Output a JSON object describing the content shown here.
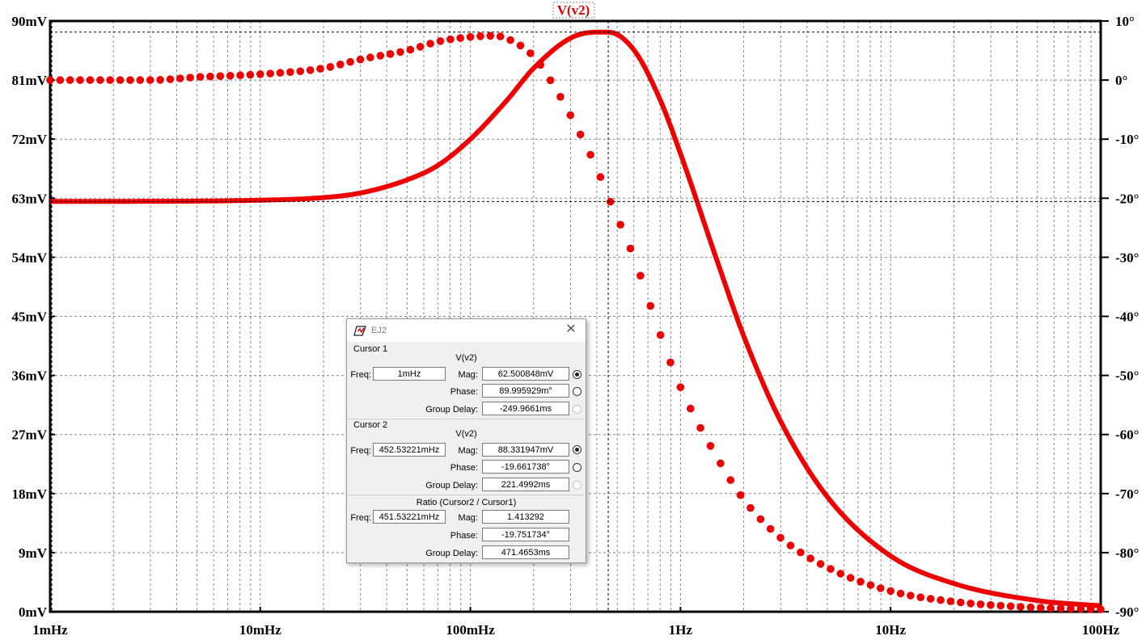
{
  "chart_data": {
    "type": "line",
    "title": "V(v2)",
    "x_scale": "log",
    "x_range_hz": [
      0.001,
      100
    ],
    "x_ticks": [
      "1mHz",
      "10mHz",
      "100mHz",
      "1Hz",
      "10Hz",
      "100Hz"
    ],
    "y_left_range_mv": [
      0,
      90
    ],
    "y_left_ticks": [
      "0mV",
      "9mV",
      "18mV",
      "27mV",
      "36mV",
      "45mV",
      "54mV",
      "63mV",
      "72mV",
      "81mV",
      "90mV"
    ],
    "y_right_range_deg": [
      -90,
      10
    ],
    "y_right_ticks": [
      "10°",
      "0°",
      "-10°",
      "-20°",
      "-30°",
      "-40°",
      "-50°",
      "-60°",
      "-70°",
      "-80°",
      "-90°"
    ],
    "grid": true,
    "color": "#ee0000",
    "series": [
      {
        "quantity": "magnitude",
        "style": "solid",
        "axis": "left",
        "x_hz": [
          0.001,
          0.01,
          0.02,
          0.03,
          0.05,
          0.07,
          0.1,
          0.15,
          0.2,
          0.3,
          0.4,
          0.453,
          0.6,
          0.8,
          1,
          1.5,
          2,
          3,
          5,
          10,
          20,
          50,
          100
        ],
        "y_mv": [
          62.5,
          62.7,
          63.1,
          63.8,
          65.8,
          68.0,
          72.0,
          78.0,
          82.8,
          87.4,
          88.3,
          88.3,
          85.6,
          78.0,
          69.8,
          53.3,
          42.0,
          29.0,
          17.5,
          8.5,
          4.3,
          1.7,
          0.9
        ]
      },
      {
        "quantity": "phase",
        "style": "dotted",
        "axis": "right",
        "x_hz": [
          0.001,
          0.003,
          0.005,
          0.01,
          0.02,
          0.03,
          0.05,
          0.07,
          0.1,
          0.13,
          0.15,
          0.2,
          0.25,
          0.3,
          0.4,
          0.453,
          0.6,
          0.8,
          1,
          1.5,
          2,
          3,
          5,
          10,
          20,
          50,
          100
        ],
        "y_deg": [
          0.0,
          0.0,
          0.5,
          1.0,
          2.0,
          3.5,
          5.0,
          6.5,
          7.3,
          7.5,
          7.0,
          4.0,
          -1.0,
          -6.0,
          -15.0,
          -19.7,
          -30.0,
          -43.0,
          -52.0,
          -64.0,
          -71.0,
          -77.5,
          -82.5,
          -86.5,
          -88.3,
          -89.3,
          -89.6
        ]
      }
    ]
  },
  "dialog": {
    "title": "EJ2",
    "cursor1": {
      "label": "Cursor 1",
      "trace": "V(v2)",
      "freq_label": "Freq:",
      "freq": "1mHz",
      "mag_label": "Mag:",
      "mag": "62.500848mV",
      "phase_label": "Phase:",
      "phase": "89.995929m°",
      "gd_label": "Group Delay:",
      "gd": "-249.9661ms"
    },
    "cursor2": {
      "label": "Cursor 2",
      "trace": "V(v2)",
      "freq_label": "Freq:",
      "freq": "452.53221mHz",
      "mag_label": "Mag:",
      "mag": "88.331947mV",
      "phase_label": "Phase:",
      "phase": "-19.661738°",
      "gd_label": "Group Delay:",
      "gd": "221.4992ms"
    },
    "ratio": {
      "label": "Ratio (Cursor2 / Cursor1)",
      "freq_label": "Freq:",
      "freq": "451.53221mHz",
      "mag_label": "Mag:",
      "mag": "1.413292",
      "phase_label": "Phase:",
      "phase": "-19.751734°",
      "gd_label": "Group Delay:",
      "gd": "471.4653ms"
    }
  }
}
